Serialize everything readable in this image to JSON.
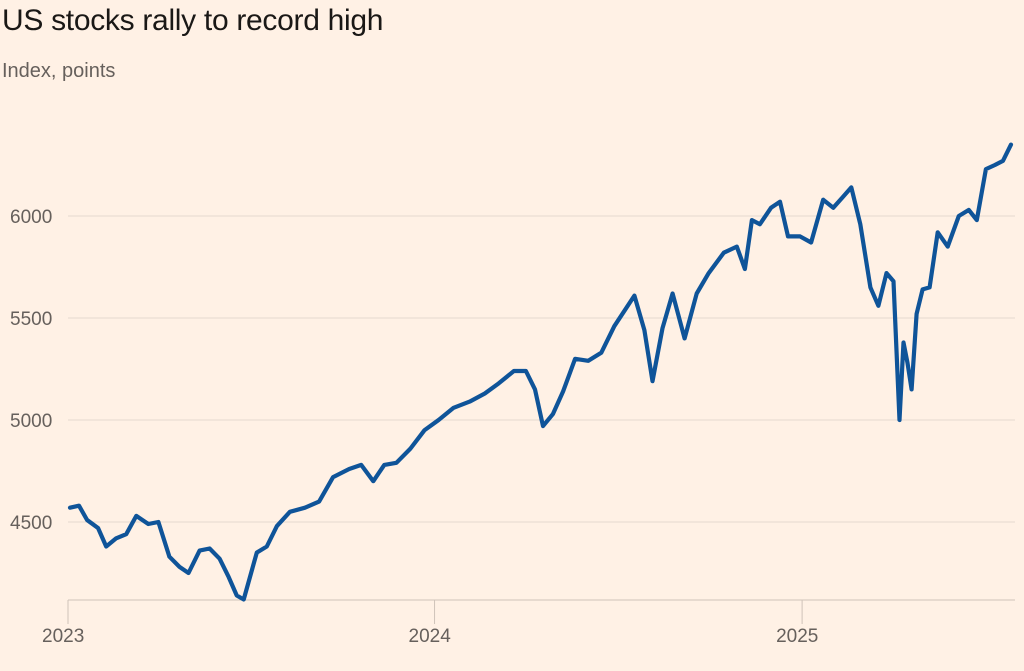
{
  "title": "US stocks rally to record high",
  "subtitle": "Index, points",
  "colors": {
    "background": "#fff1e5",
    "line": "#0f5499",
    "grid": "#e6d9ce",
    "axis": "#cfc3b9",
    "text": "#66605c",
    "title": "#1a1816"
  },
  "chart_data": {
    "type": "line",
    "title": "US stocks rally to record high",
    "subtitle": "Index, points",
    "ylabel": "Index, points",
    "ylim": [
      4110,
      6400
    ],
    "yticks": [
      4500,
      5000,
      5500,
      6000
    ],
    "xlim": [
      "2023-01-01",
      "2025-08-01"
    ],
    "xticks": [
      {
        "date": "2023-01-01",
        "label": "2023"
      },
      {
        "date": "2024-01-01",
        "label": "2024"
      },
      {
        "date": "2025-01-01",
        "label": "2025"
      }
    ],
    "grid": true,
    "legend": "none",
    "series": [
      {
        "points": [
          [
            "2023-01-03",
            4570
          ],
          [
            "2023-01-12",
            4580
          ],
          [
            "2023-01-20",
            4510
          ],
          [
            "2023-01-31",
            4470
          ],
          [
            "2023-02-08",
            4380
          ],
          [
            "2023-02-18",
            4420
          ],
          [
            "2023-02-28",
            4440
          ],
          [
            "2023-03-10",
            4530
          ],
          [
            "2023-03-22",
            4490
          ],
          [
            "2023-04-01",
            4500
          ],
          [
            "2023-04-12",
            4330
          ],
          [
            "2023-04-22",
            4280
          ],
          [
            "2023-05-01",
            4250
          ],
          [
            "2023-05-12",
            4360
          ],
          [
            "2023-05-22",
            4370
          ],
          [
            "2023-06-01",
            4320
          ],
          [
            "2023-06-10",
            4230
          ],
          [
            "2023-06-18",
            4140
          ],
          [
            "2023-06-25",
            4120
          ],
          [
            "2023-07-08",
            4350
          ],
          [
            "2023-07-18",
            4380
          ],
          [
            "2023-07-28",
            4480
          ],
          [
            "2023-08-10",
            4550
          ],
          [
            "2023-08-25",
            4570
          ],
          [
            "2023-09-08",
            4600
          ],
          [
            "2023-09-22",
            4720
          ],
          [
            "2023-10-08",
            4760
          ],
          [
            "2023-10-20",
            4780
          ],
          [
            "2023-11-01",
            4700
          ],
          [
            "2023-11-12",
            4780
          ],
          [
            "2023-11-24",
            4790
          ],
          [
            "2023-12-08",
            4860
          ],
          [
            "2023-12-22",
            4950
          ],
          [
            "2024-01-05",
            5000
          ],
          [
            "2024-01-20",
            5060
          ],
          [
            "2024-02-05",
            5090
          ],
          [
            "2024-02-20",
            5130
          ],
          [
            "2024-03-05",
            5180
          ],
          [
            "2024-03-20",
            5240
          ],
          [
            "2024-04-01",
            5240
          ],
          [
            "2024-04-10",
            5150
          ],
          [
            "2024-04-18",
            4970
          ],
          [
            "2024-04-28",
            5030
          ],
          [
            "2024-05-08",
            5140
          ],
          [
            "2024-05-20",
            5300
          ],
          [
            "2024-06-02",
            5290
          ],
          [
            "2024-06-15",
            5330
          ],
          [
            "2024-06-28",
            5460
          ],
          [
            "2024-07-10",
            5550
          ],
          [
            "2024-07-18",
            5610
          ],
          [
            "2024-07-28",
            5440
          ],
          [
            "2024-08-05",
            5190
          ],
          [
            "2024-08-15",
            5450
          ],
          [
            "2024-08-25",
            5620
          ],
          [
            "2024-09-06",
            5400
          ],
          [
            "2024-09-18",
            5620
          ],
          [
            "2024-09-30",
            5720
          ],
          [
            "2024-10-15",
            5820
          ],
          [
            "2024-10-28",
            5850
          ],
          [
            "2024-11-05",
            5740
          ],
          [
            "2024-11-12",
            5980
          ],
          [
            "2024-11-20",
            5960
          ],
          [
            "2024-12-01",
            6040
          ],
          [
            "2024-12-10",
            6070
          ],
          [
            "2024-12-18",
            5900
          ],
          [
            "2024-12-30",
            5900
          ],
          [
            "2025-01-10",
            5870
          ],
          [
            "2025-01-22",
            6080
          ],
          [
            "2025-02-01",
            6040
          ],
          [
            "2025-02-10",
            6090
          ],
          [
            "2025-02-19",
            6140
          ],
          [
            "2025-02-28",
            5960
          ],
          [
            "2025-03-10",
            5650
          ],
          [
            "2025-03-18",
            5560
          ],
          [
            "2025-03-26",
            5720
          ],
          [
            "2025-04-02",
            5680
          ],
          [
            "2025-04-08",
            5000
          ],
          [
            "2025-04-12",
            5380
          ],
          [
            "2025-04-16",
            5280
          ],
          [
            "2025-04-20",
            5150
          ],
          [
            "2025-04-25",
            5520
          ],
          [
            "2025-05-01",
            5640
          ],
          [
            "2025-05-08",
            5650
          ],
          [
            "2025-05-16",
            5920
          ],
          [
            "2025-05-26",
            5850
          ],
          [
            "2025-06-06",
            6000
          ],
          [
            "2025-06-16",
            6030
          ],
          [
            "2025-06-24",
            5980
          ],
          [
            "2025-07-03",
            6230
          ],
          [
            "2025-07-12",
            6250
          ],
          [
            "2025-07-20",
            6270
          ],
          [
            "2025-07-28",
            6350
          ]
        ]
      }
    ]
  }
}
